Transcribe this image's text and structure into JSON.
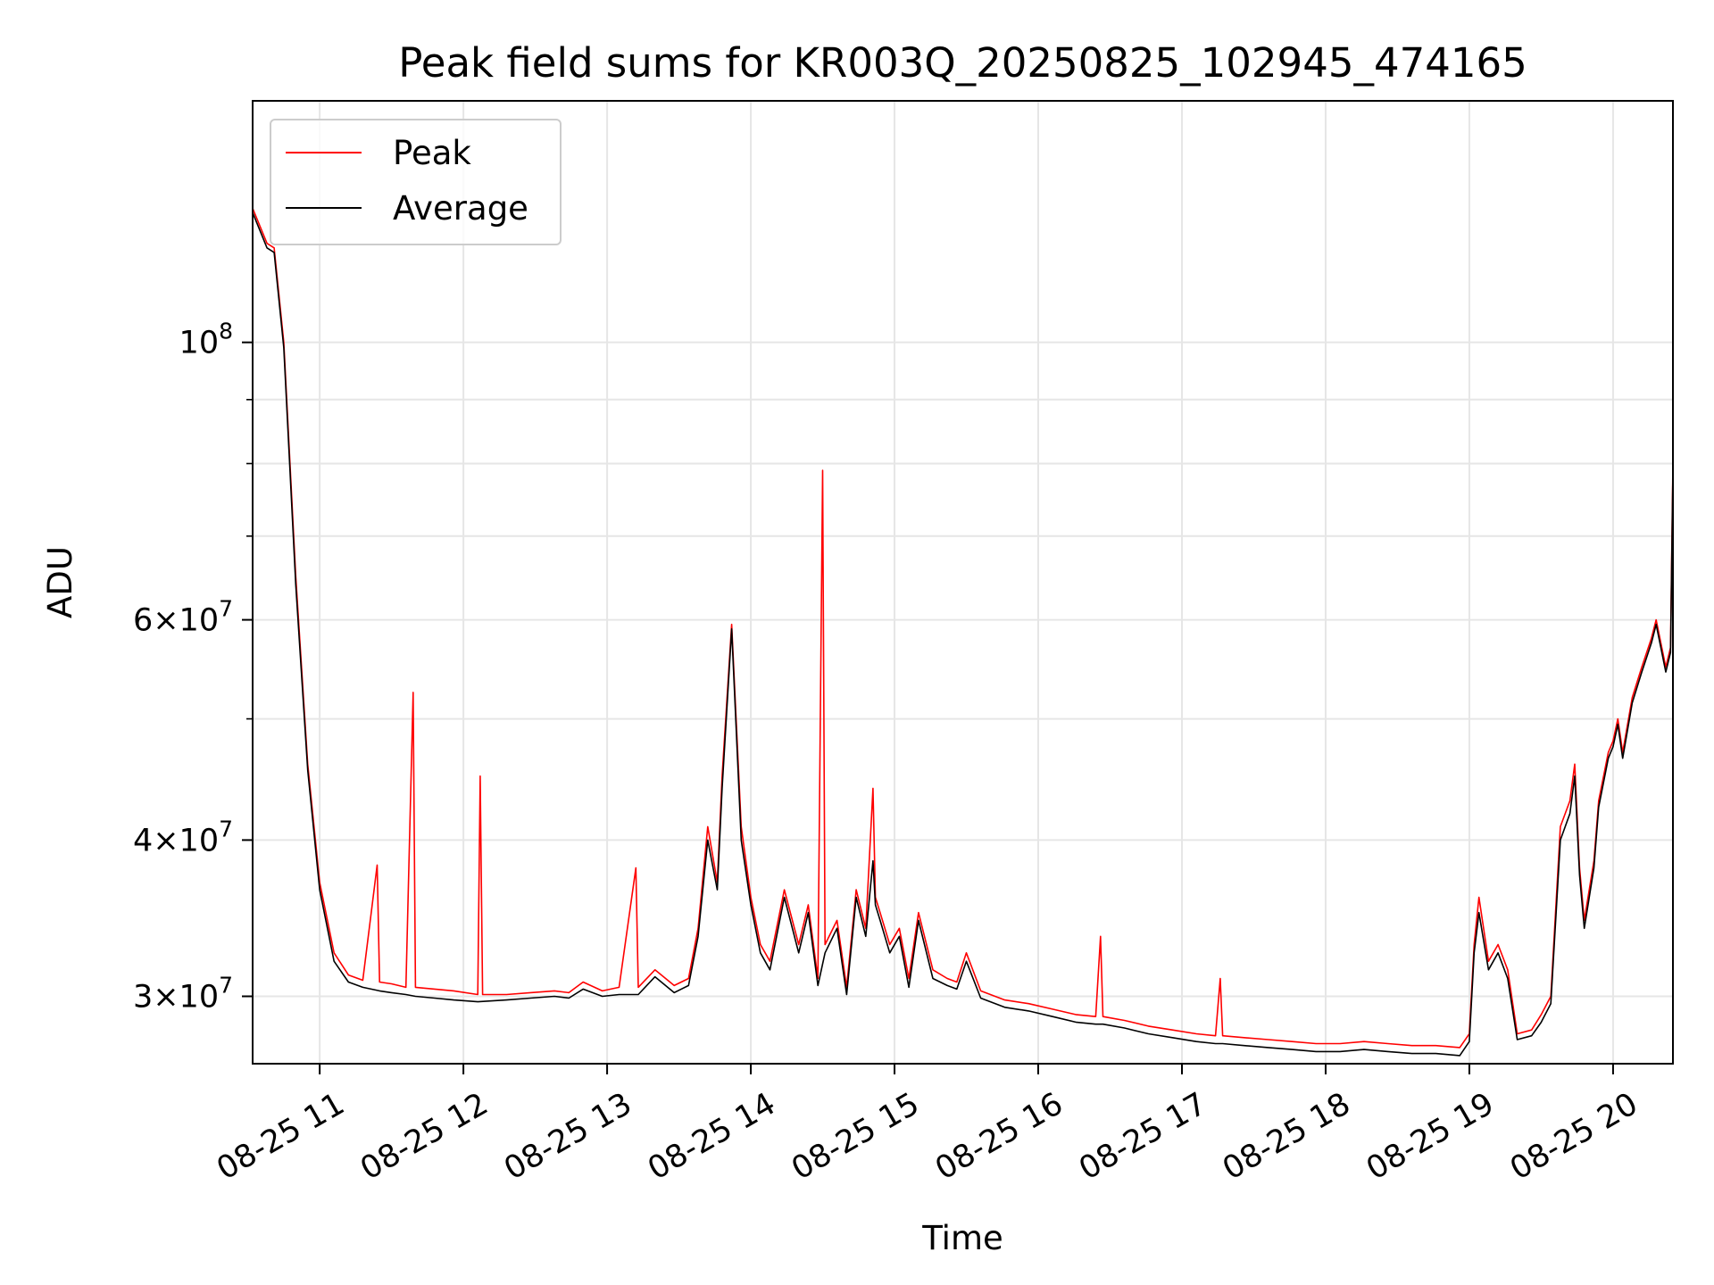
{
  "chart_data": {
    "type": "line",
    "title": "Peak field sums for KR003Q_20250825_102945_474165",
    "xlabel": "Time",
    "ylabel": "ADU",
    "yscale": "log",
    "ylim": [
      26500000,
      156000000
    ],
    "xlim": [
      "2025-08-25 10:32",
      "2025-08-25 20:25"
    ],
    "x_ticks": [
      {
        "value": "2025-08-25 11:00",
        "label": "08-25 11"
      },
      {
        "value": "2025-08-25 12:00",
        "label": "08-25 12"
      },
      {
        "value": "2025-08-25 13:00",
        "label": "08-25 13"
      },
      {
        "value": "2025-08-25 14:00",
        "label": "08-25 14"
      },
      {
        "value": "2025-08-25 15:00",
        "label": "08-25 15"
      },
      {
        "value": "2025-08-25 16:00",
        "label": "08-25 16"
      },
      {
        "value": "2025-08-25 17:00",
        "label": "08-25 17"
      },
      {
        "value": "2025-08-25 18:00",
        "label": "08-25 18"
      },
      {
        "value": "2025-08-25 19:00",
        "label": "08-25 19"
      },
      {
        "value": "2025-08-25 20:00",
        "label": "08-25 20"
      }
    ],
    "y_ticks": [
      {
        "value": 30000000,
        "base": "3",
        "exp": "7"
      },
      {
        "value": 40000000,
        "base": "4",
        "exp": "7"
      },
      {
        "value": 60000000,
        "base": "6",
        "exp": "7"
      },
      {
        "value": 100000000,
        "base": "",
        "exp": "8"
      }
    ],
    "grid": true,
    "legend": {
      "placement": "upper-left"
    },
    "series": [
      {
        "name": "Peak",
        "color": "#ff0000",
        "points": [
          [
            "2025-08-25 10:32",
            128000000
          ],
          [
            "2025-08-25 10:38",
            120000000
          ],
          [
            "2025-08-25 10:41",
            119000000
          ],
          [
            "2025-08-25 10:45",
            100000000
          ],
          [
            "2025-08-25 10:50",
            65000000
          ],
          [
            "2025-08-25 10:55",
            46000000
          ],
          [
            "2025-08-25 11:00",
            37000000
          ],
          [
            "2025-08-25 11:06",
            32500000
          ],
          [
            "2025-08-25 11:12",
            31200000
          ],
          [
            "2025-08-25 11:18",
            30900000
          ],
          [
            "2025-08-25 11:24",
            38200000
          ],
          [
            "2025-08-25 11:25",
            30800000
          ],
          [
            "2025-08-25 11:30",
            30700000
          ],
          [
            "2025-08-25 11:36",
            30500000
          ],
          [
            "2025-08-25 11:39",
            52500000
          ],
          [
            "2025-08-25 11:40",
            30500000
          ],
          [
            "2025-08-25 11:48",
            30400000
          ],
          [
            "2025-08-25 11:56",
            30300000
          ],
          [
            "2025-08-25 12:06",
            30100000
          ],
          [
            "2025-08-25 12:07",
            45000000
          ],
          [
            "2025-08-25 12:08",
            30100000
          ],
          [
            "2025-08-25 12:18",
            30100000
          ],
          [
            "2025-08-25 12:28",
            30200000
          ],
          [
            "2025-08-25 12:38",
            30300000
          ],
          [
            "2025-08-25 12:44",
            30200000
          ],
          [
            "2025-08-25 12:50",
            30800000
          ],
          [
            "2025-08-25 12:58",
            30300000
          ],
          [
            "2025-08-25 13:05",
            30500000
          ],
          [
            "2025-08-25 13:12",
            38000000
          ],
          [
            "2025-08-25 13:13",
            30500000
          ],
          [
            "2025-08-25 13:20",
            31500000
          ],
          [
            "2025-08-25 13:28",
            30600000
          ],
          [
            "2025-08-25 13:34",
            31000000
          ],
          [
            "2025-08-25 13:38",
            34000000
          ],
          [
            "2025-08-25 13:42",
            41000000
          ],
          [
            "2025-08-25 13:46",
            37000000
          ],
          [
            "2025-08-25 13:48",
            45000000
          ],
          [
            "2025-08-25 13:52",
            59500000
          ],
          [
            "2025-08-25 13:56",
            41000000
          ],
          [
            "2025-08-25 14:00",
            36000000
          ],
          [
            "2025-08-25 14:04",
            33000000
          ],
          [
            "2025-08-25 14:08",
            32000000
          ],
          [
            "2025-08-25 14:14",
            36500000
          ],
          [
            "2025-08-25 14:20",
            33000000
          ],
          [
            "2025-08-25 14:24",
            35500000
          ],
          [
            "2025-08-25 14:28",
            31000000
          ],
          [
            "2025-08-25 14:30",
            79000000
          ],
          [
            "2025-08-25 14:31",
            33000000
          ],
          [
            "2025-08-25 14:36",
            34500000
          ],
          [
            "2025-08-25 14:40",
            30500000
          ],
          [
            "2025-08-25 14:44",
            36500000
          ],
          [
            "2025-08-25 14:48",
            34000000
          ],
          [
            "2025-08-25 14:51",
            44000000
          ],
          [
            "2025-08-25 14:52",
            36000000
          ],
          [
            "2025-08-25 14:54",
            35000000
          ],
          [
            "2025-08-25 14:58",
            33000000
          ],
          [
            "2025-08-25 15:02",
            34000000
          ],
          [
            "2025-08-25 15:06",
            31000000
          ],
          [
            "2025-08-25 15:10",
            35000000
          ],
          [
            "2025-08-25 15:16",
            31500000
          ],
          [
            "2025-08-25 15:22",
            31000000
          ],
          [
            "2025-08-25 15:26",
            30800000
          ],
          [
            "2025-08-25 15:30",
            32500000
          ],
          [
            "2025-08-25 15:36",
            30300000
          ],
          [
            "2025-08-25 15:46",
            29800000
          ],
          [
            "2025-08-25 15:56",
            29600000
          ],
          [
            "2025-08-25 16:06",
            29300000
          ],
          [
            "2025-08-25 16:16",
            29000000
          ],
          [
            "2025-08-25 16:24",
            28900000
          ],
          [
            "2025-08-25 16:26",
            33500000
          ],
          [
            "2025-08-25 16:27",
            28900000
          ],
          [
            "2025-08-25 16:36",
            28700000
          ],
          [
            "2025-08-25 16:46",
            28400000
          ],
          [
            "2025-08-25 16:56",
            28200000
          ],
          [
            "2025-08-25 17:06",
            28000000
          ],
          [
            "2025-08-25 17:14",
            27900000
          ],
          [
            "2025-08-25 17:16",
            31000000
          ],
          [
            "2025-08-25 17:17",
            27900000
          ],
          [
            "2025-08-25 17:26",
            27800000
          ],
          [
            "2025-08-25 17:36",
            27700000
          ],
          [
            "2025-08-25 17:46",
            27600000
          ],
          [
            "2025-08-25 17:56",
            27500000
          ],
          [
            "2025-08-25 18:06",
            27500000
          ],
          [
            "2025-08-25 18:16",
            27600000
          ],
          [
            "2025-08-25 18:26",
            27500000
          ],
          [
            "2025-08-25 18:36",
            27400000
          ],
          [
            "2025-08-25 18:46",
            27400000
          ],
          [
            "2025-08-25 18:56",
            27300000
          ],
          [
            "2025-08-25 19:00",
            28000000
          ],
          [
            "2025-08-25 19:02",
            33000000
          ],
          [
            "2025-08-25 19:04",
            36000000
          ],
          [
            "2025-08-25 19:08",
            32000000
          ],
          [
            "2025-08-25 19:12",
            33000000
          ],
          [
            "2025-08-25 19:16",
            31500000
          ],
          [
            "2025-08-25 19:20",
            28000000
          ],
          [
            "2025-08-25 19:26",
            28200000
          ],
          [
            "2025-08-25 19:30",
            29000000
          ],
          [
            "2025-08-25 19:34",
            30000000
          ],
          [
            "2025-08-25 19:38",
            41000000
          ],
          [
            "2025-08-25 19:42",
            43000000
          ],
          [
            "2025-08-25 19:44",
            46000000
          ],
          [
            "2025-08-25 19:46",
            38000000
          ],
          [
            "2025-08-25 19:48",
            34500000
          ],
          [
            "2025-08-25 19:52",
            38500000
          ],
          [
            "2025-08-25 19:54",
            43000000
          ],
          [
            "2025-08-25 19:58",
            47000000
          ],
          [
            "2025-08-25 20:00",
            48000000
          ],
          [
            "2025-08-25 20:02",
            50000000
          ],
          [
            "2025-08-25 20:04",
            47000000
          ],
          [
            "2025-08-25 20:08",
            52000000
          ],
          [
            "2025-08-25 20:12",
            55000000
          ],
          [
            "2025-08-25 20:16",
            58000000
          ],
          [
            "2025-08-25 20:18",
            60000000
          ],
          [
            "2025-08-25 20:22",
            55000000
          ],
          [
            "2025-08-25 20:24",
            57000000
          ],
          [
            "2025-08-25 20:25",
            80000000
          ]
        ]
      },
      {
        "name": "Average",
        "color": "#000000",
        "points": [
          [
            "2025-08-25 10:32",
            127000000
          ],
          [
            "2025-08-25 10:38",
            119000000
          ],
          [
            "2025-08-25 10:41",
            118000000
          ],
          [
            "2025-08-25 10:45",
            99000000
          ],
          [
            "2025-08-25 10:50",
            64000000
          ],
          [
            "2025-08-25 10:55",
            45500000
          ],
          [
            "2025-08-25 11:00",
            36500000
          ],
          [
            "2025-08-25 11:06",
            32000000
          ],
          [
            "2025-08-25 11:12",
            30800000
          ],
          [
            "2025-08-25 11:18",
            30500000
          ],
          [
            "2025-08-25 11:25",
            30300000
          ],
          [
            "2025-08-25 11:30",
            30200000
          ],
          [
            "2025-08-25 11:36",
            30100000
          ],
          [
            "2025-08-25 11:40",
            30000000
          ],
          [
            "2025-08-25 11:48",
            29900000
          ],
          [
            "2025-08-25 11:56",
            29800000
          ],
          [
            "2025-08-25 12:06",
            29700000
          ],
          [
            "2025-08-25 12:18",
            29800000
          ],
          [
            "2025-08-25 12:28",
            29900000
          ],
          [
            "2025-08-25 12:38",
            30000000
          ],
          [
            "2025-08-25 12:44",
            29900000
          ],
          [
            "2025-08-25 12:50",
            30400000
          ],
          [
            "2025-08-25 12:58",
            30000000
          ],
          [
            "2025-08-25 13:05",
            30100000
          ],
          [
            "2025-08-25 13:13",
            30100000
          ],
          [
            "2025-08-25 13:20",
            31100000
          ],
          [
            "2025-08-25 13:28",
            30200000
          ],
          [
            "2025-08-25 13:34",
            30600000
          ],
          [
            "2025-08-25 13:38",
            33500000
          ],
          [
            "2025-08-25 13:42",
            40000000
          ],
          [
            "2025-08-25 13:46",
            36500000
          ],
          [
            "2025-08-25 13:48",
            44000000
          ],
          [
            "2025-08-25 13:52",
            59000000
          ],
          [
            "2025-08-25 13:56",
            40000000
          ],
          [
            "2025-08-25 14:00",
            35500000
          ],
          [
            "2025-08-25 14:04",
            32500000
          ],
          [
            "2025-08-25 14:08",
            31500000
          ],
          [
            "2025-08-25 14:14",
            36000000
          ],
          [
            "2025-08-25 14:20",
            32500000
          ],
          [
            "2025-08-25 14:24",
            35000000
          ],
          [
            "2025-08-25 14:28",
            30600000
          ],
          [
            "2025-08-25 14:31",
            32500000
          ],
          [
            "2025-08-25 14:36",
            34000000
          ],
          [
            "2025-08-25 14:40",
            30100000
          ],
          [
            "2025-08-25 14:44",
            36000000
          ],
          [
            "2025-08-25 14:48",
            33500000
          ],
          [
            "2025-08-25 14:51",
            38500000
          ],
          [
            "2025-08-25 14:52",
            35500000
          ],
          [
            "2025-08-25 14:54",
            34500000
          ],
          [
            "2025-08-25 14:58",
            32500000
          ],
          [
            "2025-08-25 15:02",
            33500000
          ],
          [
            "2025-08-25 15:06",
            30500000
          ],
          [
            "2025-08-25 15:10",
            34500000
          ],
          [
            "2025-08-25 15:16",
            31000000
          ],
          [
            "2025-08-25 15:22",
            30600000
          ],
          [
            "2025-08-25 15:26",
            30400000
          ],
          [
            "2025-08-25 15:30",
            32000000
          ],
          [
            "2025-08-25 15:36",
            29900000
          ],
          [
            "2025-08-25 15:46",
            29400000
          ],
          [
            "2025-08-25 15:56",
            29200000
          ],
          [
            "2025-08-25 16:06",
            28900000
          ],
          [
            "2025-08-25 16:16",
            28600000
          ],
          [
            "2025-08-25 16:24",
            28500000
          ],
          [
            "2025-08-25 16:27",
            28500000
          ],
          [
            "2025-08-25 16:36",
            28300000
          ],
          [
            "2025-08-25 16:46",
            28000000
          ],
          [
            "2025-08-25 16:56",
            27800000
          ],
          [
            "2025-08-25 17:06",
            27600000
          ],
          [
            "2025-08-25 17:14",
            27500000
          ],
          [
            "2025-08-25 17:17",
            27500000
          ],
          [
            "2025-08-25 17:26",
            27400000
          ],
          [
            "2025-08-25 17:36",
            27300000
          ],
          [
            "2025-08-25 17:46",
            27200000
          ],
          [
            "2025-08-25 17:56",
            27100000
          ],
          [
            "2025-08-25 18:06",
            27100000
          ],
          [
            "2025-08-25 18:16",
            27200000
          ],
          [
            "2025-08-25 18:26",
            27100000
          ],
          [
            "2025-08-25 18:36",
            27000000
          ],
          [
            "2025-08-25 18:46",
            27000000
          ],
          [
            "2025-08-25 18:56",
            26900000
          ],
          [
            "2025-08-25 19:00",
            27600000
          ],
          [
            "2025-08-25 19:02",
            32500000
          ],
          [
            "2025-08-25 19:04",
            35000000
          ],
          [
            "2025-08-25 19:08",
            31500000
          ],
          [
            "2025-08-25 19:12",
            32500000
          ],
          [
            "2025-08-25 19:16",
            31000000
          ],
          [
            "2025-08-25 19:20",
            27700000
          ],
          [
            "2025-08-25 19:26",
            27900000
          ],
          [
            "2025-08-25 19:30",
            28600000
          ],
          [
            "2025-08-25 19:34",
            29600000
          ],
          [
            "2025-08-25 19:38",
            40000000
          ],
          [
            "2025-08-25 19:42",
            42000000
          ],
          [
            "2025-08-25 19:44",
            45000000
          ],
          [
            "2025-08-25 19:46",
            37500000
          ],
          [
            "2025-08-25 19:48",
            34000000
          ],
          [
            "2025-08-25 19:52",
            38000000
          ],
          [
            "2025-08-25 19:54",
            42500000
          ],
          [
            "2025-08-25 19:58",
            46500000
          ],
          [
            "2025-08-25 20:00",
            47500000
          ],
          [
            "2025-08-25 20:02",
            49500000
          ],
          [
            "2025-08-25 20:04",
            46500000
          ],
          [
            "2025-08-25 20:08",
            51500000
          ],
          [
            "2025-08-25 20:12",
            54500000
          ],
          [
            "2025-08-25 20:16",
            57500000
          ],
          [
            "2025-08-25 20:18",
            59500000
          ],
          [
            "2025-08-25 20:22",
            54500000
          ],
          [
            "2025-08-25 20:24",
            56500000
          ],
          [
            "2025-08-25 20:25",
            79000000
          ]
        ]
      }
    ]
  }
}
